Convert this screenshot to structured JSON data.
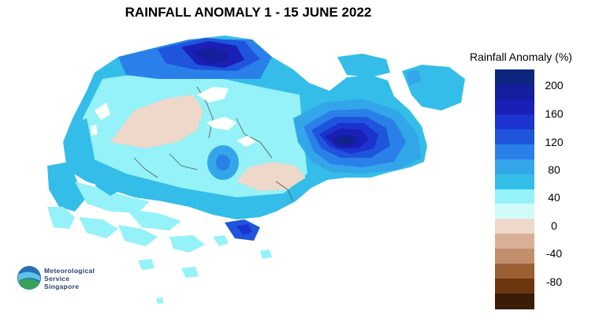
{
  "title": "RAINFALL ANOMALY 1 - 15 JUNE 2022",
  "legend": {
    "title": "Rainfall Anomaly (%)",
    "ticks": [
      "200",
      "160",
      "120",
      "80",
      "40",
      "0",
      "-40",
      "-80"
    ],
    "colors": [
      "#0d2680",
      "#151e9c",
      "#1a1fb8",
      "#1c33d0",
      "#1e55dc",
      "#2a80e8",
      "#33a6ea",
      "#34bde8",
      "#94f2f8",
      "#d0fbfa",
      "#eed8c9",
      "#d9b097",
      "#c28f6c",
      "#9a5f32",
      "#6b3610",
      "#3a1d08"
    ]
  },
  "logo": {
    "line1": "Meteorological",
    "line2": "Service",
    "line3": "Singapore",
    "colors": [
      "#2b6fb3",
      "#3aa35a",
      "#5cc3e8"
    ]
  }
}
